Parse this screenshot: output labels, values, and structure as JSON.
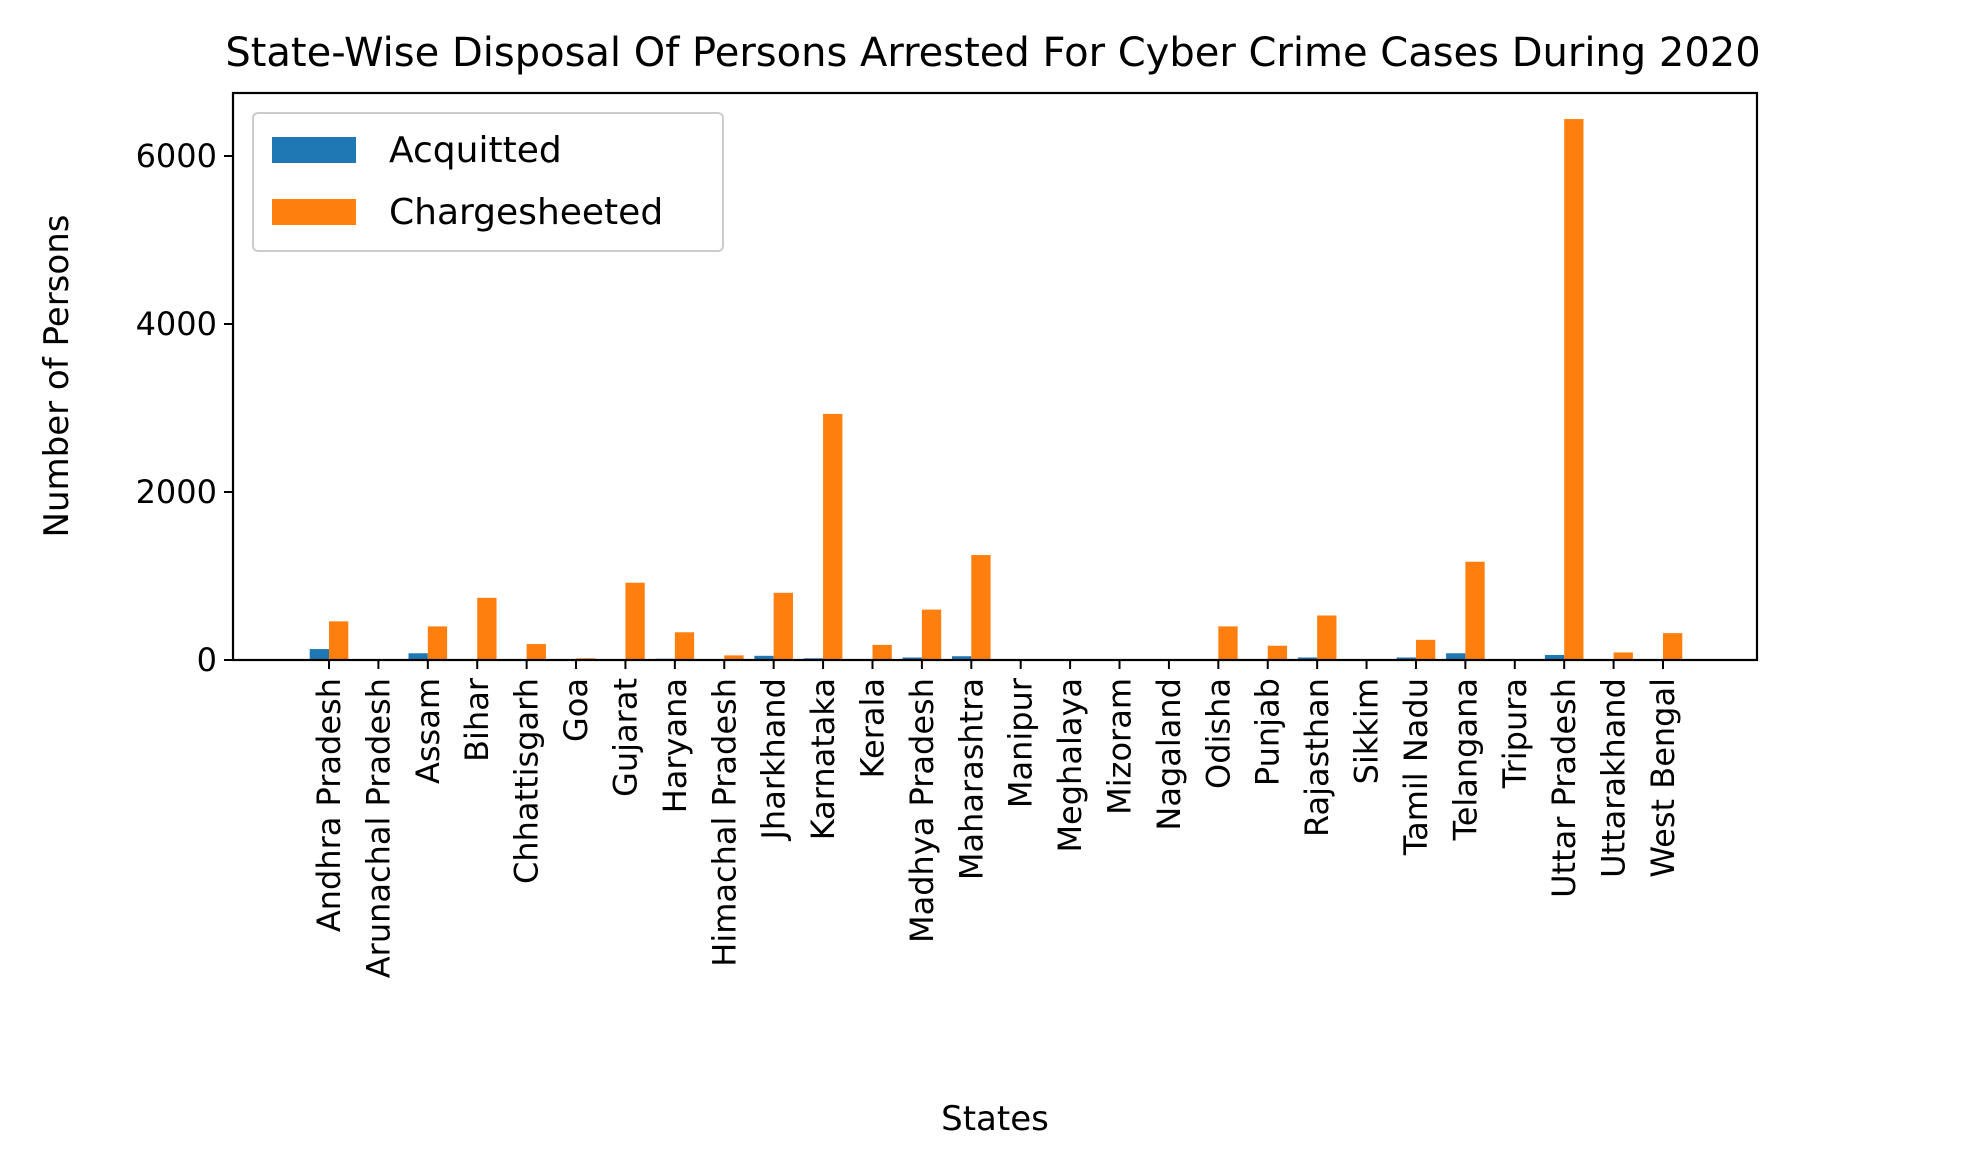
{
  "chart_data": {
    "type": "bar",
    "title": "State-Wise Disposal Of Persons Arrested For Cyber Crime Cases During 2020",
    "xlabel": "States",
    "ylabel": "Number of Persons",
    "ylim": [
      0,
      6750
    ],
    "yticks": [
      0,
      2000,
      4000,
      6000
    ],
    "grid": false,
    "legend": "top-left",
    "categories": [
      "Andhra Pradesh",
      "Arunachal Pradesh",
      "Assam",
      "Bihar",
      "Chhattisgarh",
      "Goa",
      "Gujarat",
      "Haryana",
      "Himachal Pradesh",
      "Jharkhand",
      "Karnataka",
      "Kerala",
      "Madhya Pradesh",
      "Maharashtra",
      "Manipur",
      "Meghalaya",
      "Mizoram",
      "Nagaland",
      "Odisha",
      "Punjab",
      "Rajasthan",
      "Sikkim",
      "Tamil Nadu",
      "Telangana",
      "Tripura",
      "Uttar Pradesh",
      "Uttarakhand",
      "West Bengal"
    ],
    "series": [
      {
        "name": "Acquitted",
        "color": "#1f77b4",
        "values": [
          130,
          0,
          80,
          0,
          0,
          0,
          0,
          15,
          5,
          50,
          20,
          0,
          30,
          45,
          0,
          0,
          0,
          0,
          0,
          0,
          30,
          0,
          30,
          80,
          0,
          60,
          0,
          0
        ]
      },
      {
        "name": "Chargesheeted",
        "color": "#ff7f0e",
        "values": [
          460,
          5,
          400,
          740,
          190,
          20,
          920,
          330,
          55,
          800,
          2930,
          180,
          600,
          1250,
          5,
          0,
          0,
          0,
          400,
          170,
          530,
          0,
          240,
          1170,
          0,
          6440,
          90,
          320
        ]
      }
    ]
  }
}
